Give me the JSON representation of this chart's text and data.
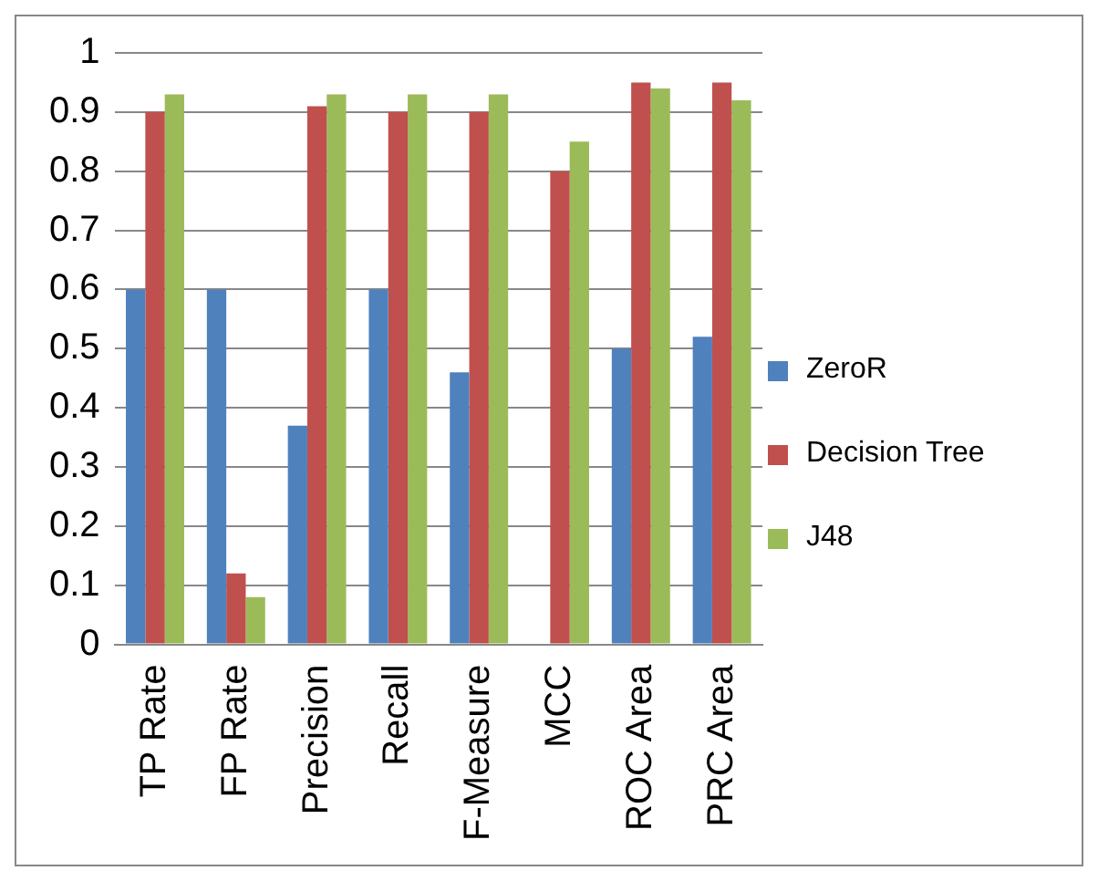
{
  "chart_data": {
    "type": "bar",
    "categories": [
      "TP Rate",
      "FP Rate",
      "Precision",
      "Recall",
      "F-Measure",
      "MCC",
      "ROC Area",
      "PRC Area"
    ],
    "series": [
      {
        "name": "ZeroR",
        "color": "#4f81bd",
        "values": [
          0.6,
          0.6,
          0.37,
          0.6,
          0.46,
          0,
          0.5,
          0.52
        ]
      },
      {
        "name": "Decision Tree",
        "color": "#c0504d",
        "values": [
          0.9,
          0.12,
          0.91,
          0.9,
          0.9,
          0.8,
          0.95,
          0.95
        ]
      },
      {
        "name": "J48",
        "color": "#9bbb59",
        "values": [
          0.93,
          0.08,
          0.93,
          0.93,
          0.93,
          0.85,
          0.94,
          0.92
        ]
      }
    ],
    "ylim": [
      0,
      1
    ],
    "yticks": [
      0,
      0.1,
      0.2,
      0.3,
      0.4,
      0.5,
      0.6,
      0.7,
      0.8,
      0.9,
      1
    ],
    "grid": "y",
    "legend": "right"
  }
}
